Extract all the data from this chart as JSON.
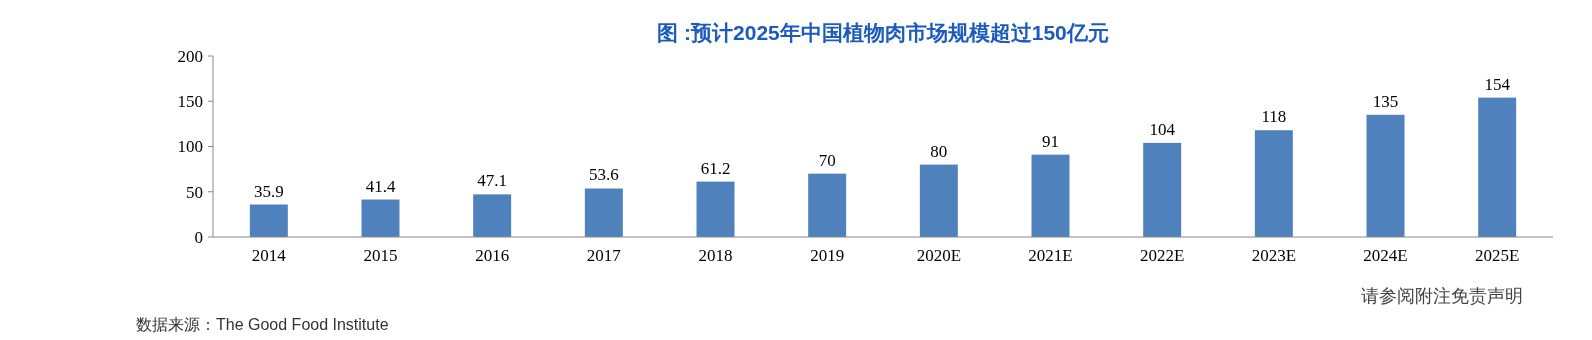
{
  "chart_data": {
    "type": "bar",
    "title": "图 :预计2025年中国植物肉市场规模超过150亿元",
    "categories": [
      "2014",
      "2015",
      "2016",
      "2017",
      "2018",
      "2019",
      "2020E",
      "2021E",
      "2022E",
      "2023E",
      "2024E",
      "2025E"
    ],
    "values": [
      35.9,
      41.4,
      47.1,
      53.6,
      61.2,
      70,
      80,
      91,
      104,
      118,
      135,
      154
    ],
    "color": "#4f81bd",
    "ylim": [
      0,
      200
    ],
    "yticks": [
      0,
      50,
      100,
      150,
      200
    ],
    "grid": false,
    "data_labels": true,
    "annotations": [
      "请参阅附注免责声明",
      "数据来源：The Good Food Institute"
    ]
  }
}
